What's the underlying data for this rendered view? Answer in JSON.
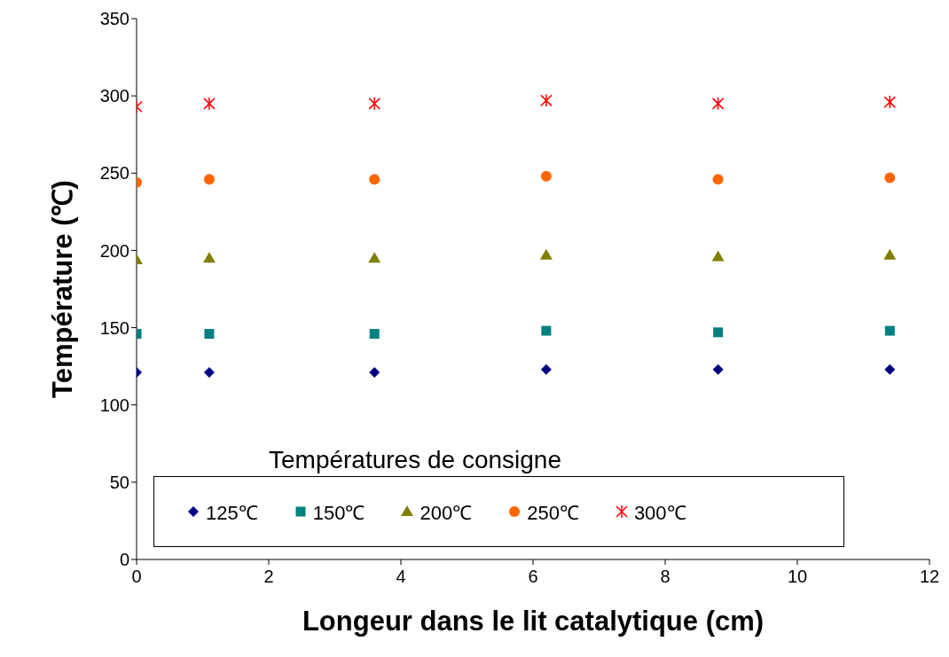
{
  "chart_data": {
    "type": "scatter",
    "xlabel": "Longeur dans le lit catalytique (cm)",
    "ylabel": "Température (℃)",
    "legend_title": "Températures de consigne",
    "x": [
      0,
      1.1,
      3.6,
      6.2,
      8.8,
      11.4
    ],
    "series": [
      {
        "name": "125℃",
        "color": "#000080",
        "marker": "diamond",
        "values": [
          121,
          121,
          121,
          123,
          123,
          123
        ]
      },
      {
        "name": "150℃",
        "color": "#008080",
        "marker": "square",
        "values": [
          146,
          146,
          146,
          148,
          147,
          148
        ]
      },
      {
        "name": "200℃",
        "color": "#808000",
        "marker": "triangle",
        "values": [
          194,
          195,
          195,
          197,
          196,
          197
        ]
      },
      {
        "name": "250℃",
        "color": "#ff6600",
        "marker": "circle",
        "values": [
          244,
          246,
          246,
          248,
          246,
          247
        ]
      },
      {
        "name": "300℃",
        "color": "#ff0000",
        "marker": "cross",
        "values": [
          293,
          295,
          295,
          297,
          295,
          296
        ]
      }
    ],
    "xlim": [
      0,
      12
    ],
    "xticks": [
      0,
      2,
      4,
      6,
      8,
      10,
      12
    ],
    "ylim": [
      0,
      350
    ],
    "yticks": [
      0,
      50,
      100,
      150,
      200,
      250,
      300,
      350
    ],
    "grid": false,
    "legend": "bottom"
  }
}
